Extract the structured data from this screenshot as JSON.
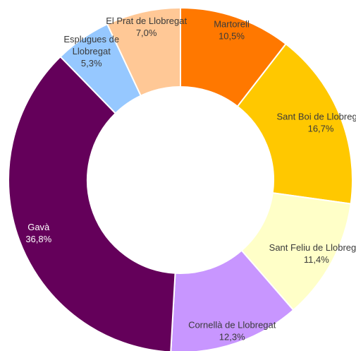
{
  "chart_data": {
    "type": "pie",
    "slices": [
      {
        "label": "Martorell",
        "value": 10.5,
        "value_label": "10,5%",
        "color": "#ff7800",
        "text_color": "#3a3a3a"
      },
      {
        "label": "Sant Boi de Llobregat",
        "value": 16.7,
        "value_label": "16,7%",
        "color": "#ffc800",
        "text_color": "#3a3a3a"
      },
      {
        "label": "Sant Feliu de Llobregat",
        "value": 11.4,
        "value_label": "11,4%",
        "color": "#ffffc8",
        "text_color": "#3a3a3a"
      },
      {
        "label": "Cornellà de Llobregat",
        "value": 12.3,
        "value_label": "12,3%",
        "color": "#c896ff",
        "text_color": "#3a3a3a"
      },
      {
        "label": "Gavà",
        "value": 36.8,
        "value_label": "36,8%",
        "color": "#64005a",
        "text_color": "#ffffff"
      },
      {
        "label": "Esplugues de Llobregat",
        "value": 5.3,
        "value_label": "5,3%",
        "color": "#96c8ff",
        "text_color": "#3a3a3a"
      },
      {
        "label": "El Prat de Llobregat",
        "value": 7.0,
        "value_label": "7,0%",
        "color": "#ffc896",
        "text_color": "#3a3a3a"
      }
    ]
  }
}
